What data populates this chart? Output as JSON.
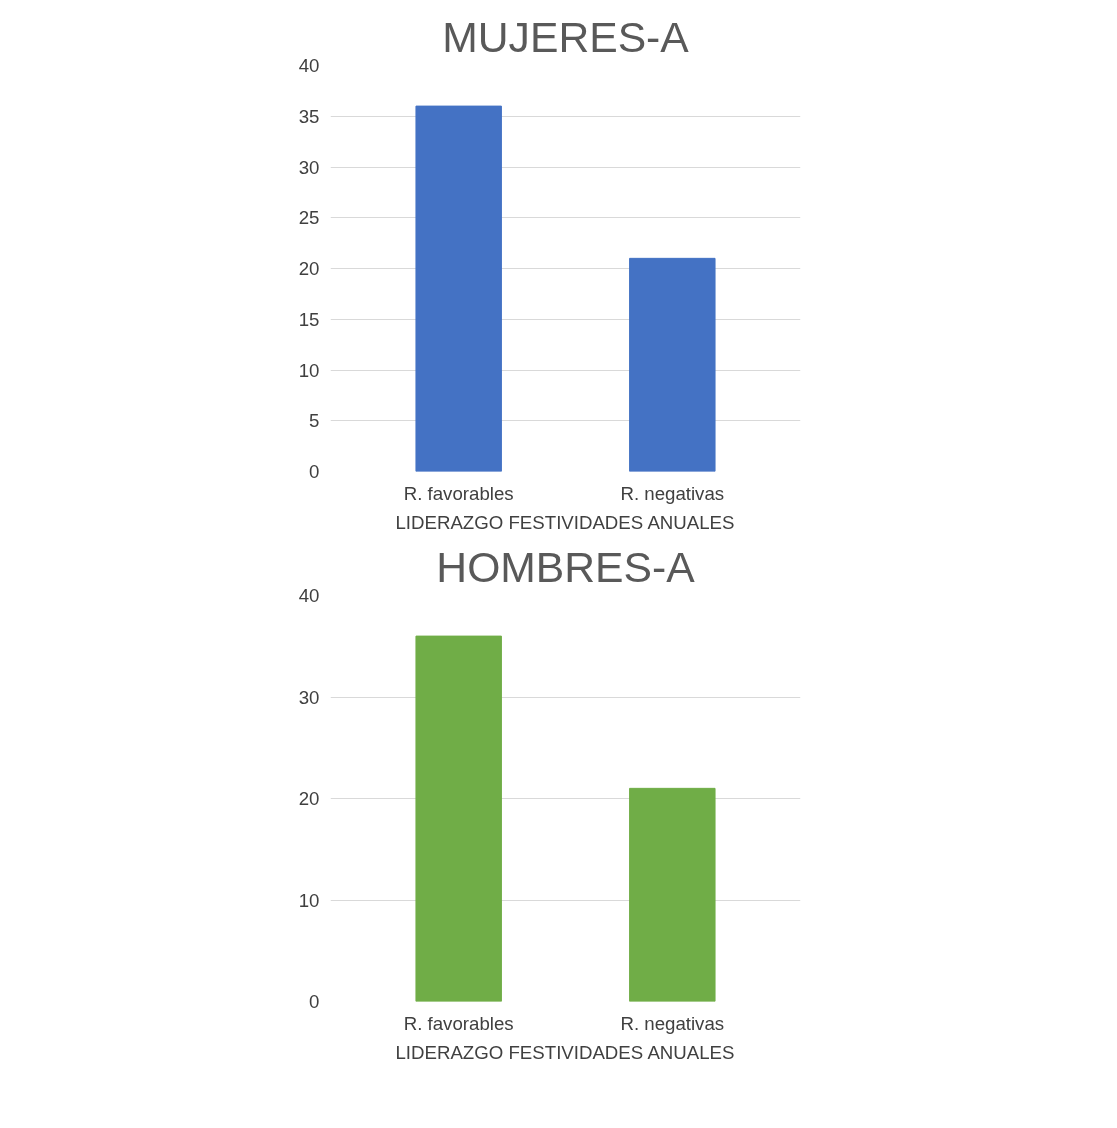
{
  "chart_data": [
    {
      "type": "bar",
      "title": "MUJERES-A",
      "xlabel": "LIDERAZGO FESTIVIDADES ANUALES",
      "categories": [
        "R. favorables",
        "R. negativas"
      ],
      "values": [
        36,
        21
      ],
      "color": "#4472c4",
      "ylim": [
        0,
        40
      ],
      "yticks": [
        0,
        5,
        10,
        15,
        20,
        25,
        30,
        35,
        40
      ],
      "grid": "y"
    },
    {
      "type": "bar",
      "title": "HOMBRES-A",
      "xlabel": "LIDERAZGO FESTIVIDADES ANUALES",
      "categories": [
        "R. favorables",
        "R. negativas"
      ],
      "values": [
        36,
        21
      ],
      "color": "#70ad47",
      "ylim": [
        0,
        40
      ],
      "yticks": [
        0,
        10,
        20,
        30,
        40
      ],
      "grid": "y"
    }
  ]
}
